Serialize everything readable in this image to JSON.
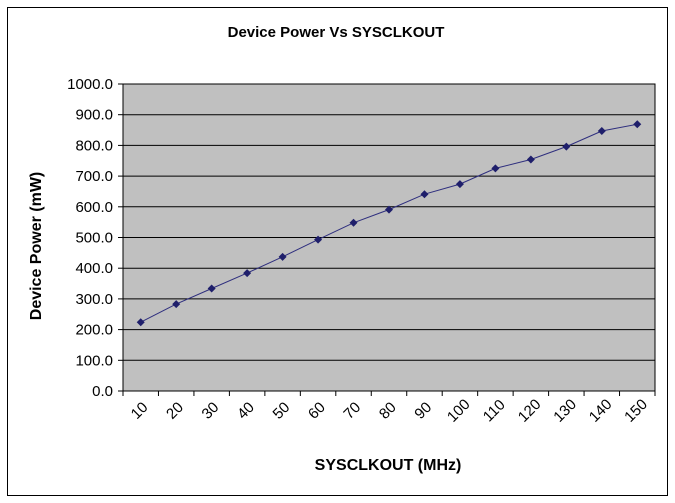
{
  "chart_data": {
    "type": "line",
    "title": "Device Power Vs SYSCLKOUT",
    "xlabel": "SYSCLKOUT (MHz)",
    "ylabel": "Device Power (mW)",
    "categories": [
      "10",
      "20",
      "30",
      "40",
      "50",
      "60",
      "70",
      "80",
      "90",
      "100",
      "110",
      "120",
      "130",
      "140",
      "150"
    ],
    "series": [
      {
        "name": "",
        "values": [
          224,
          283,
          334,
          384,
          437,
          493,
          548,
          591,
          641,
          674,
          725,
          754,
          796,
          847,
          869
        ]
      }
    ],
    "ylim": [
      0,
      1000
    ],
    "ytick_step": 100,
    "ytick_labels": [
      "0.0",
      "100.0",
      "200.0",
      "300.0",
      "400.0",
      "500.0",
      "600.0",
      "700.0",
      "800.0",
      "900.0",
      "1000.0"
    ],
    "grid": true,
    "legend": "none",
    "colors": {
      "plot_background": "#c0c0c0",
      "gridline": "#000000",
      "series": "#2e2e7e",
      "marker": "#1f1f6b",
      "frame": "#000000"
    }
  }
}
